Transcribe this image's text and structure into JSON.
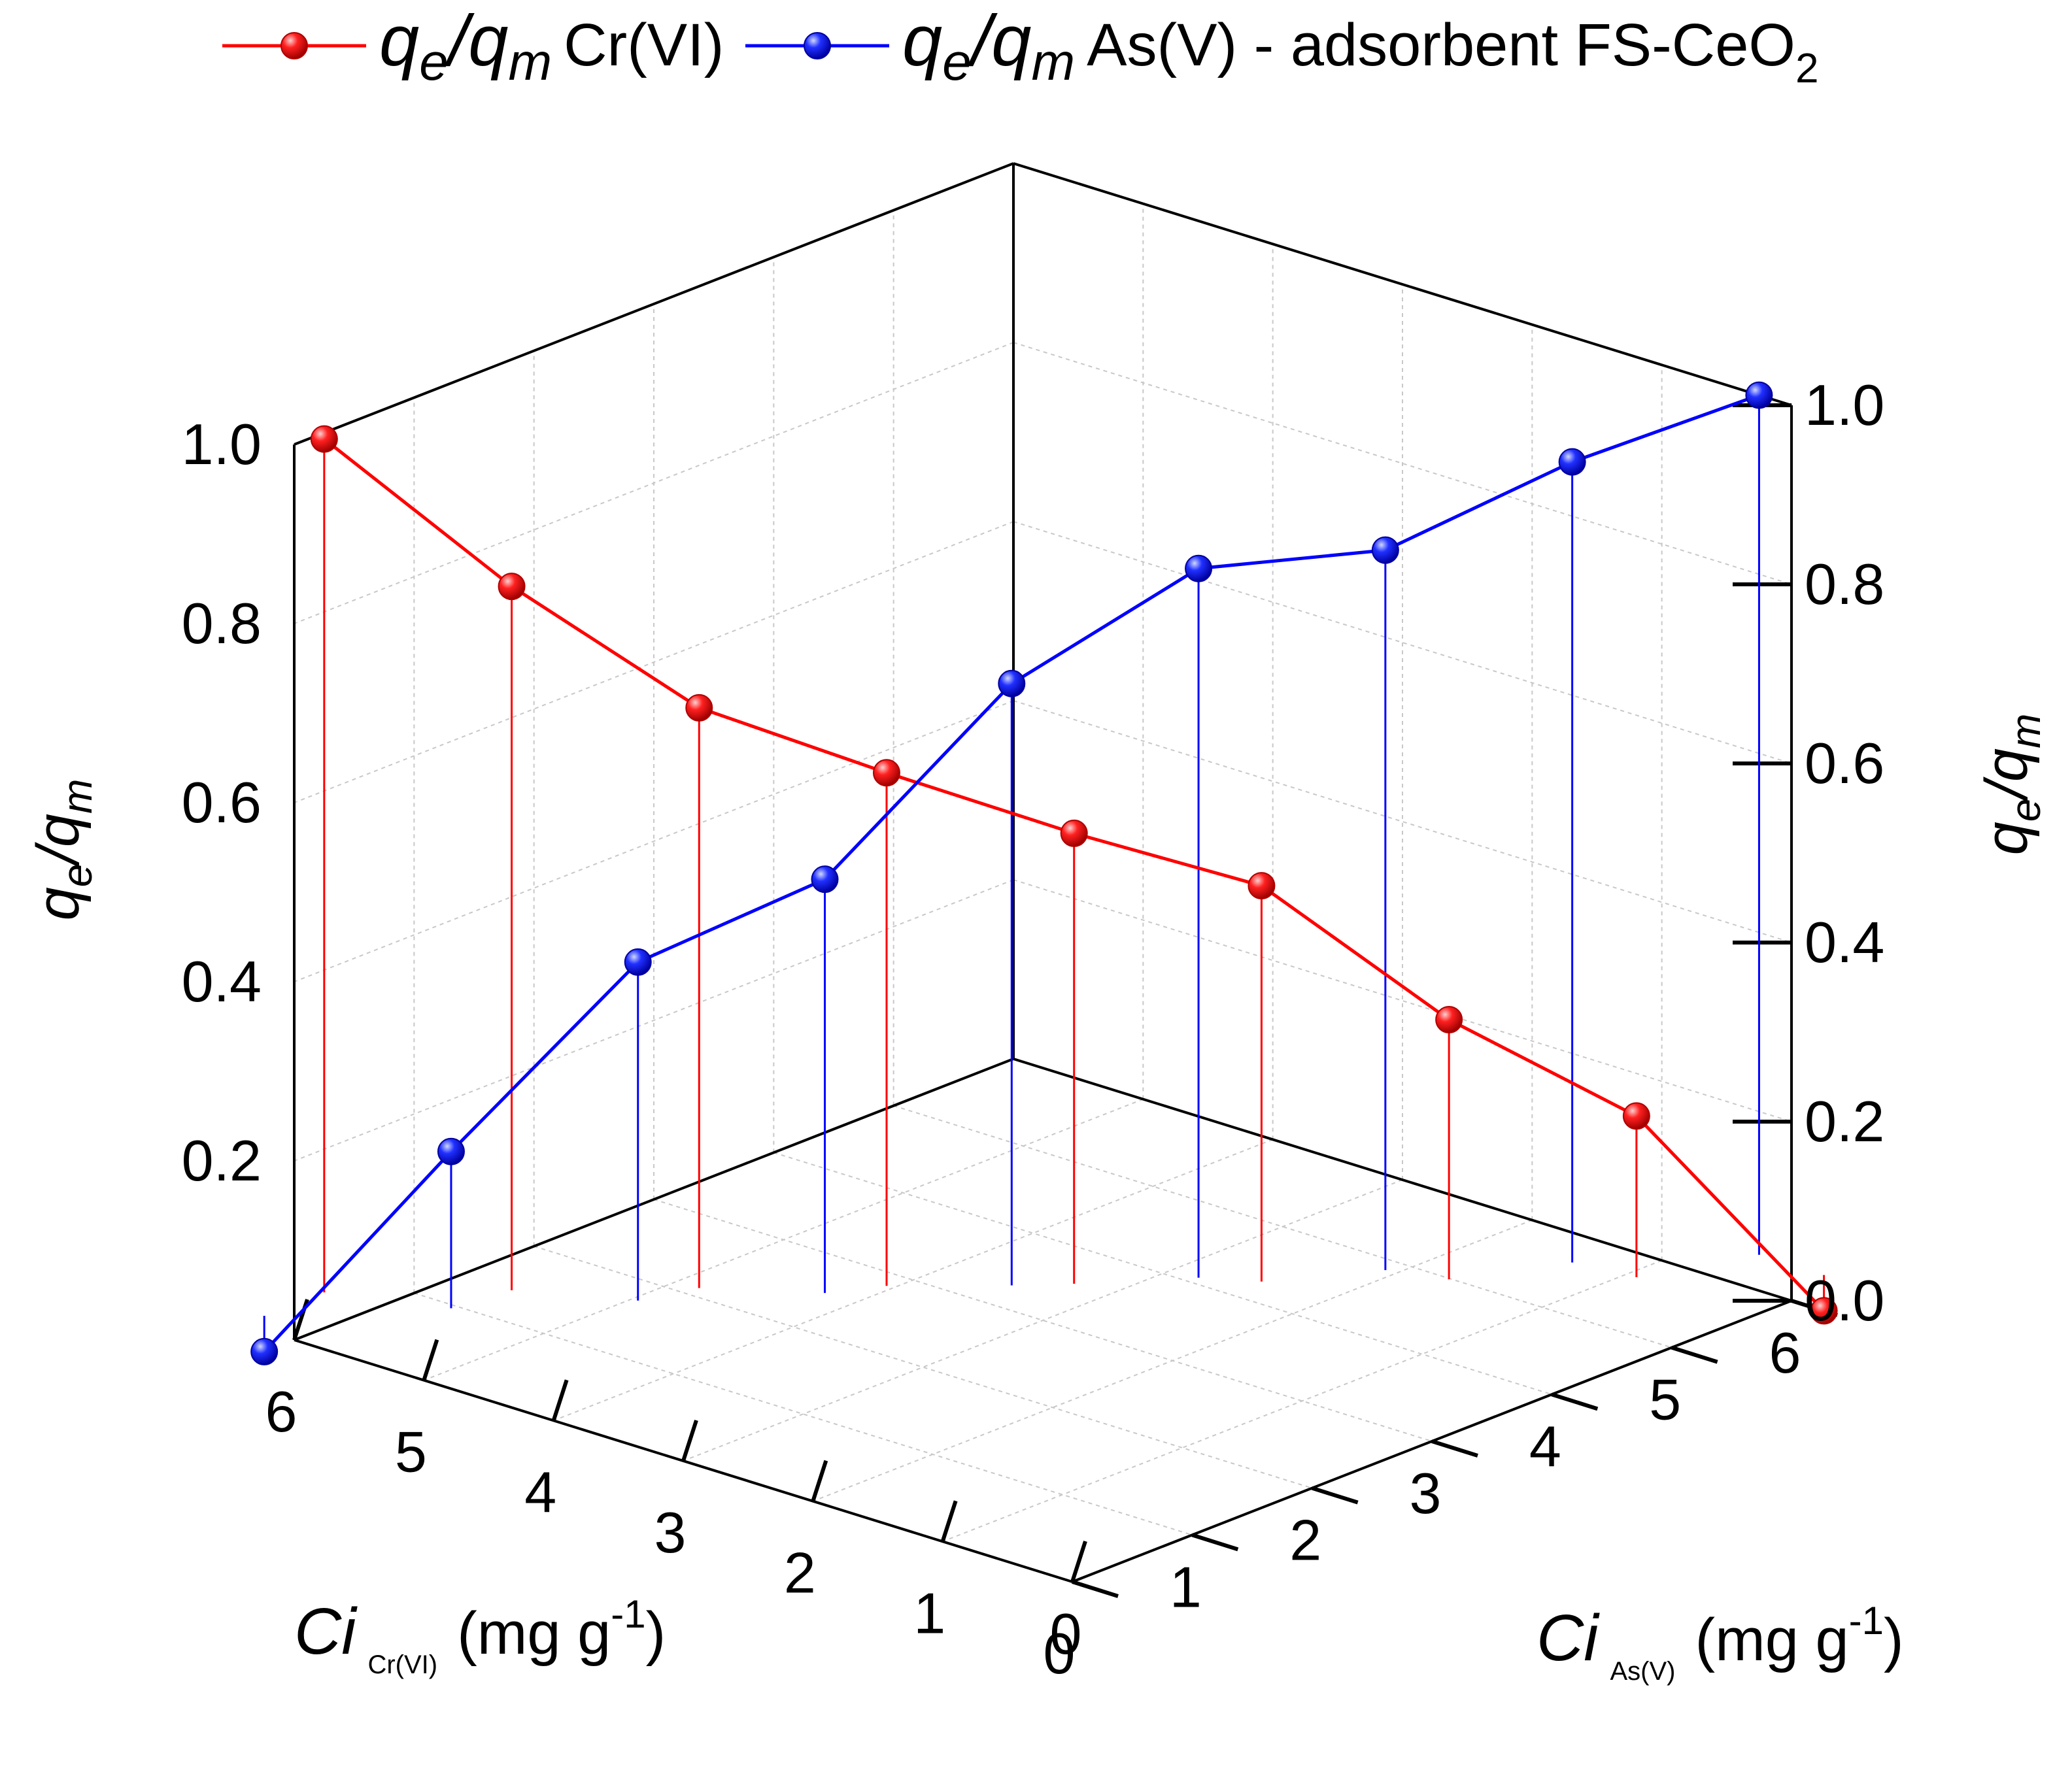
{
  "chart_data": {
    "type": "line",
    "legend": {
      "placement": "top",
      "entries": [
        {
          "q_italic": "q",
          "e_sub": "e",
          "slash": "/",
          "m_sub": "m",
          "label": "Cr(VI)",
          "color": "#ff0000"
        },
        {
          "q_italic": "q",
          "e_sub": "e",
          "slash": "/",
          "m_sub": "m",
          "label": "As(V) - adsorbent FS-CeO",
          "tail_sub": "2",
          "color": "#0000ff"
        }
      ]
    },
    "z_axis": {
      "ylim": [
        0,
        1.0
      ],
      "left_ticks": [
        "0.2",
        "0.4",
        "0.6",
        "0.8",
        "1.0"
      ],
      "right_ticks": [
        "0.0",
        "0.2",
        "0.4",
        "0.6",
        "0.8",
        "1.0"
      ],
      "title_main": "q",
      "title_sub1": "e",
      "title_slash": "/q",
      "title_sub2": "m"
    },
    "x_axis": {
      "range": [
        0,
        6
      ],
      "ticks": [
        "0",
        "1",
        "2",
        "3",
        "4",
        "5",
        "6"
      ],
      "title_main": "Ci",
      "title_sub": "Cr(VI)",
      "title_unit": "(mg g",
      "title_exp": "-1",
      "title_close": ")"
    },
    "y_axis": {
      "range": [
        0,
        6
      ],
      "ticks": [
        "0",
        "1",
        "2",
        "3",
        "4",
        "5",
        "6"
      ],
      "title_main": "Ci",
      "title_sub": "As(V)",
      "title_unit": "(mg g",
      "title_exp": "-1",
      "title_close": ")"
    },
    "series": [
      {
        "name": "qe/qm Cr(VI)",
        "color": "#ff0000",
        "values": [
          0.993,
          0.826,
          0.688,
          0.613,
          0.543,
          0.482,
          0.33,
          0.22,
          0.0
        ]
      },
      {
        "name": "qe/qm As(V) - adsorbent FS-CeO2",
        "color": "#0000ff",
        "values": [
          0.0,
          0.215,
          0.418,
          0.502,
          0.712,
          0.832,
          0.844,
          0.934,
          1.0
        ]
      }
    ],
    "grid": true
  }
}
